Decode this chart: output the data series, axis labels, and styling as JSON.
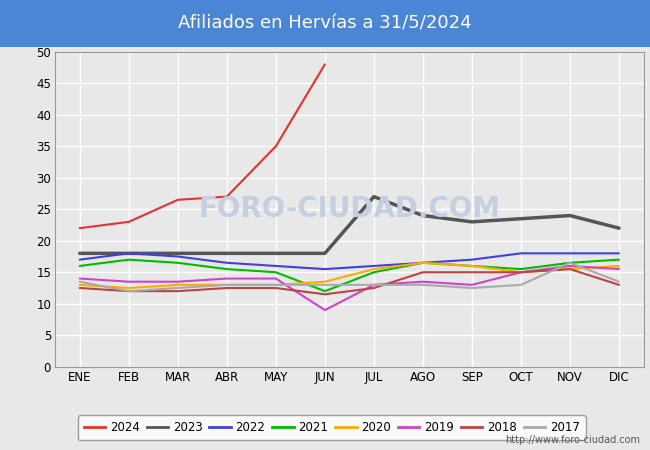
{
  "title": "Afiliados en Hervías a 31/5/2024",
  "title_bg_color": "#4a86d4",
  "title_text_color": "white",
  "ylim": [
    0,
    50
  ],
  "yticks": [
    0,
    5,
    10,
    15,
    20,
    25,
    30,
    35,
    40,
    45,
    50
  ],
  "months": [
    "ENE",
    "FEB",
    "MAR",
    "ABR",
    "MAY",
    "JUN",
    "JUL",
    "AGO",
    "SEP",
    "OCT",
    "NOV",
    "DIC"
  ],
  "month_indices": [
    1,
    2,
    3,
    4,
    5,
    6,
    7,
    8,
    9,
    10,
    11,
    12
  ],
  "series": {
    "2024": {
      "color": "#e83030",
      "linewidth": 1.5,
      "data": [
        22,
        23,
        26.5,
        27,
        35,
        48,
        null,
        null,
        null,
        null,
        null,
        null
      ]
    },
    "2023": {
      "color": "#555555",
      "linewidth": 2.5,
      "data": [
        18,
        18,
        18,
        18,
        18,
        18,
        27,
        24,
        23,
        23.5,
        24,
        22
      ]
    },
    "2022": {
      "color": "#4040dd",
      "linewidth": 1.5,
      "data": [
        17,
        18,
        17.5,
        16.5,
        16,
        15.5,
        16,
        16.5,
        17,
        18,
        18,
        18
      ]
    },
    "2021": {
      "color": "#00bb00",
      "linewidth": 1.5,
      "data": [
        16,
        17,
        16.5,
        15.5,
        15,
        12,
        15,
        16.5,
        16,
        15.5,
        16.5,
        17
      ]
    },
    "2020": {
      "color": "#ffaa00",
      "linewidth": 1.5,
      "data": [
        13,
        12.5,
        13,
        13,
        13,
        13.5,
        15.5,
        16.5,
        16,
        15,
        15.5,
        16
      ]
    },
    "2019": {
      "color": "#cc44cc",
      "linewidth": 1.5,
      "data": [
        14,
        13.5,
        13.5,
        14,
        14,
        9,
        13,
        13.5,
        13,
        15,
        16,
        15.5
      ]
    },
    "2018": {
      "color": "#bb4444",
      "linewidth": 1.5,
      "data": [
        12.5,
        12,
        12,
        12.5,
        12.5,
        11.5,
        12.5,
        15,
        15,
        15,
        15.5,
        13
      ]
    },
    "2017": {
      "color": "#aaaaaa",
      "linewidth": 1.5,
      "data": [
        13.5,
        12,
        12.5,
        13,
        13,
        13,
        13,
        13,
        12.5,
        13,
        16.5,
        13.5
      ]
    }
  },
  "footer_url": "http://www.foro-ciudad.com",
  "bg_color": "#e8e8e8",
  "plot_bg_color": "#e8e8e8",
  "grid_color": "white",
  "watermark_color": "#c5cfe0",
  "watermark_text": "FORO-CIUDAD.COM"
}
